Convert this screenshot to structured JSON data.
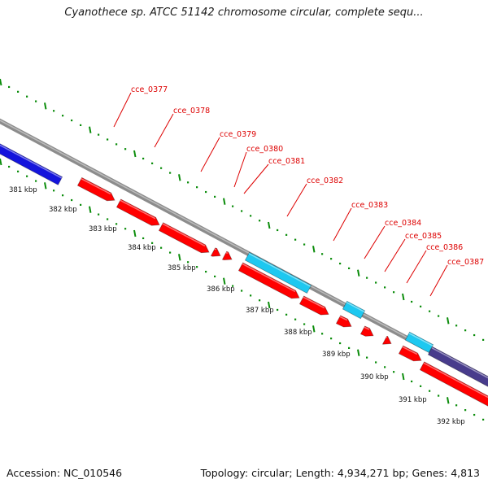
{
  "title": "Cyanothece sp. ATCC 51142 chromosome circular, complete sequ...",
  "footer": {
    "accession": "Accession: NC_010546",
    "summary": "Topology: circular; Length: 4,934,271 bp; Genes: 4,813"
  },
  "colors": {
    "forward_gene": "#ff0000",
    "rna_gene": "#1ec8f0",
    "blue_gene": "#1414dc",
    "purple_gene": "#483c8c",
    "backbone": "#8c8c8c",
    "tick": "#0a8c0a",
    "label": "#dd0000"
  },
  "scale_labels": [
    "381 kbp",
    "382 kbp",
    "383 kbp",
    "384 kbp",
    "385 kbp",
    "386 kbp",
    "387 kbp",
    "388 kbp",
    "389 kbp",
    "390 kbp",
    "391 kbp",
    "392 kbp"
  ],
  "gene_labels": [
    "cce_0377",
    "cce_0378",
    "cce_0379",
    "cce_0380",
    "cce_0381",
    "cce_0382",
    "cce_0383",
    "cce_0384",
    "cce_0385",
    "cce_0386",
    "cce_0387"
  ]
}
